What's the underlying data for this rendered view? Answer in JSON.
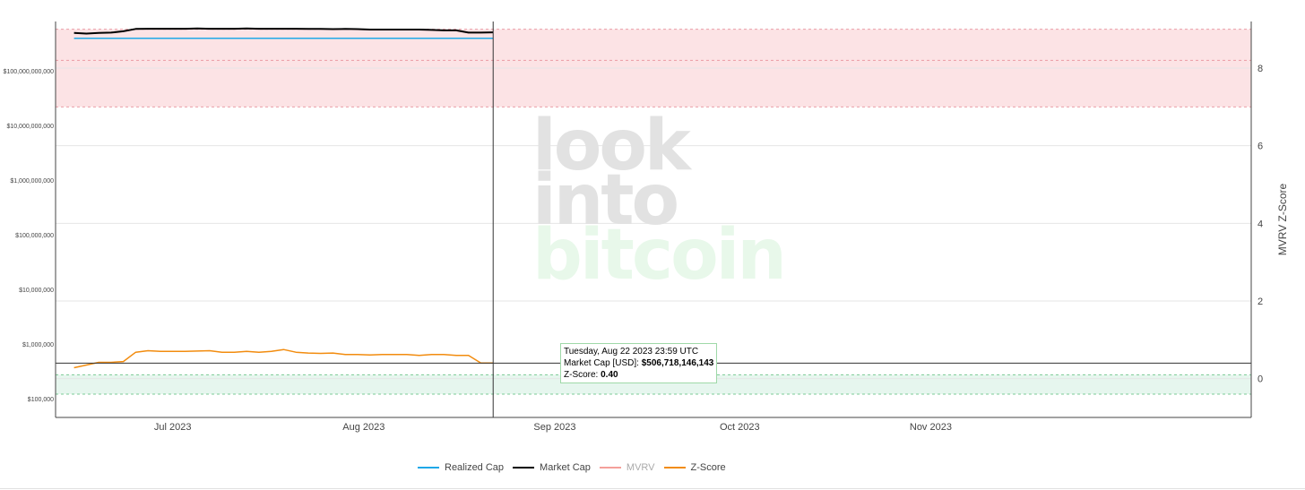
{
  "chart_data": {
    "type": "line",
    "x_dates": [
      "2023-06-15",
      "2023-06-17",
      "2023-06-19",
      "2023-06-21",
      "2023-06-23",
      "2023-06-25",
      "2023-06-27",
      "2023-06-29",
      "2023-07-01",
      "2023-07-03",
      "2023-07-05",
      "2023-07-07",
      "2023-07-09",
      "2023-07-11",
      "2023-07-13",
      "2023-07-15",
      "2023-07-17",
      "2023-07-19",
      "2023-07-21",
      "2023-07-23",
      "2023-07-25",
      "2023-07-27",
      "2023-07-29",
      "2023-07-31",
      "2023-08-02",
      "2023-08-04",
      "2023-08-06",
      "2023-08-08",
      "2023-08-10",
      "2023-08-12",
      "2023-08-14",
      "2023-08-16",
      "2023-08-18",
      "2023-08-20",
      "2023-08-22"
    ],
    "series": [
      {
        "name": "Realized Cap",
        "color": "#1fa8e8",
        "axis": "left",
        "values": [
          395000000000.0,
          395000000000.0,
          395000000000.0,
          395000000000.0,
          395000000000.0,
          395000000000.0,
          395000000000.0,
          395000000000.0,
          395000000000.0,
          395000000000.0,
          395000000000.0,
          395000000000.0,
          395000000000.0,
          395000000000.0,
          395000000000.0,
          395000000000.0,
          395000000000.0,
          395000000000.0,
          395000000000.0,
          395000000000.0,
          395000000000.0,
          395000000000.0,
          395000000000.0,
          395000000000.0,
          395000000000.0,
          395000000000.0,
          395000000000.0,
          395000000000.0,
          395000000000.0,
          395000000000.0,
          395000000000.0,
          395000000000.0,
          395000000000.0,
          395000000000.0,
          395000000000.0
        ]
      },
      {
        "name": "Market Cap",
        "color": "#000000",
        "axis": "left",
        "values": [
          495000000000.0,
          480000000000.0,
          495000000000.0,
          500000000000.0,
          530000000000.0,
          585000000000.0,
          590000000000.0,
          590000000000.0,
          590000000000.0,
          590000000000.0,
          595000000000.0,
          590000000000.0,
          590000000000.0,
          590000000000.0,
          595000000000.0,
          590000000000.0,
          590000000000.0,
          590000000000.0,
          590000000000.0,
          588000000000.0,
          588000000000.0,
          580000000000.0,
          585000000000.0,
          580000000000.0,
          570000000000.0,
          570000000000.0,
          570000000000.0,
          570000000000.0,
          570000000000.0,
          560000000000.0,
          550000000000.0,
          550000000000.0,
          500000000000.0,
          500000000000.0,
          507000000000.0
        ]
      },
      {
        "name": "MVRV",
        "color": "#f4a09a",
        "axis": "left",
        "values": []
      },
      {
        "name": "Z-Score",
        "color": "#f28c0f",
        "axis": "right",
        "values": [
          0.28,
          0.35,
          0.42,
          0.42,
          0.44,
          0.68,
          0.72,
          0.7,
          0.7,
          0.7,
          0.71,
          0.72,
          0.68,
          0.68,
          0.7,
          0.68,
          0.7,
          0.75,
          0.68,
          0.66,
          0.65,
          0.66,
          0.62,
          0.62,
          0.61,
          0.62,
          0.62,
          0.62,
          0.6,
          0.62,
          0.62,
          0.6,
          0.6,
          0.4,
          0.4
        ]
      }
    ],
    "zones": [
      {
        "name": "red-band",
        "color": "#f9c7cc",
        "from": 7.0,
        "to": 9.0,
        "dashes": [
          7.0,
          8.2,
          9.0
        ]
      },
      {
        "name": "green-band",
        "color": "#cdeedd",
        "from": -0.4,
        "to": 0.1,
        "dashes": [
          -0.4,
          0.1
        ]
      }
    ],
    "left_ticks": [
      "$100,000",
      "$1,000,000",
      "$10,000,000",
      "$100,000,000",
      "$1,000,000,000",
      "$10,000,000,000",
      "$100,000,000,000"
    ],
    "left_tick_values": [
      100000.0,
      1000000.0,
      10000000.0,
      100000000.0,
      1000000000.0,
      10000000000.0,
      100000000000.0
    ],
    "ylim_left": [
      45000.0,
      800000000000.0
    ],
    "right_ticks": [
      "0",
      "2",
      "4",
      "6",
      "8"
    ],
    "ylim_right": [
      -1.0,
      9.2
    ],
    "ylabel_right": "MVRV Z-Score",
    "x_ticks": [
      "Jul 2023",
      "Aug 2023",
      "Sep 2023",
      "Oct 2023",
      "Nov 2023"
    ],
    "x_tick_dates": [
      "2023-07-01",
      "2023-08-01",
      "2023-09-01",
      "2023-10-01",
      "2023-11-01"
    ],
    "xlim": [
      "2023-06-12",
      "2023-12-23"
    ],
    "hover_date": "2023-08-22",
    "hover_z": 0.4,
    "grid": true,
    "legend_position": "bottom"
  },
  "tooltip": {
    "date": "Tuesday, Aug 22 2023 23:59 UTC",
    "market_cap_label": "Market Cap [USD]: ",
    "market_cap_value": "$506,718,146,143",
    "zscore_label": "Z-Score: ",
    "zscore_value": "0.40"
  },
  "watermark": {
    "line1": "look",
    "line2": "into",
    "line3": "bitcoin",
    "color_gray": "#e2e2e2",
    "color_green": "#e8f8ea"
  },
  "legend": {
    "items": [
      {
        "label": "Realized Cap",
        "color": "#1fa8e8",
        "dim": false
      },
      {
        "label": "Market Cap",
        "color": "#000000",
        "dim": false
      },
      {
        "label": "MVRV",
        "color": "#f4a09a",
        "dim": true
      },
      {
        "label": "Z-Score",
        "color": "#f28c0f",
        "dim": false
      }
    ]
  }
}
